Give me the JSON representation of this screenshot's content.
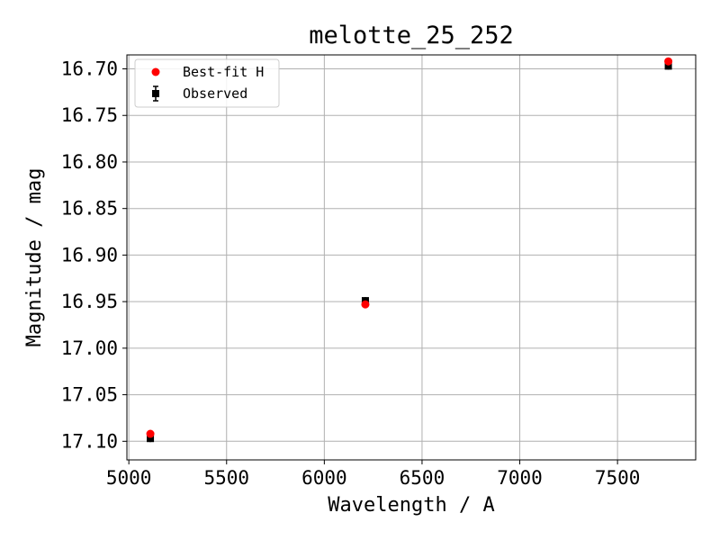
{
  "chart_data": {
    "type": "scatter",
    "title": "melotte_25_252",
    "xlabel": "Wavelength / A",
    "ylabel": "Magnitude / mag",
    "xlim": [
      4990,
      7900
    ],
    "ylim": [
      17.12,
      16.685
    ],
    "y_inverted": true,
    "grid": true,
    "legend_position": "top-left",
    "xticks": [
      5000,
      5500,
      6000,
      6500,
      7000,
      7500
    ],
    "xtick_labels": [
      "5000",
      "5500",
      "6000",
      "6500",
      "7000",
      "7500"
    ],
    "yticks": [
      16.7,
      16.75,
      16.8,
      16.85,
      16.9,
      16.95,
      17.0,
      17.05,
      17.1
    ],
    "ytick_labels": [
      "16.70",
      "16.75",
      "16.80",
      "16.85",
      "16.90",
      "16.95",
      "17.00",
      "17.05",
      "17.10"
    ],
    "series": [
      {
        "name": "Best-fit H",
        "marker": "circle",
        "color": "#ff0000",
        "x": [
          5110,
          6210,
          7760
        ],
        "y": [
          17.092,
          16.953,
          16.692
        ]
      },
      {
        "name": "Observed",
        "marker": "square",
        "color": "#000000",
        "x": [
          5110,
          6210,
          7760
        ],
        "y": [
          17.097,
          16.949,
          16.697
        ]
      }
    ]
  }
}
